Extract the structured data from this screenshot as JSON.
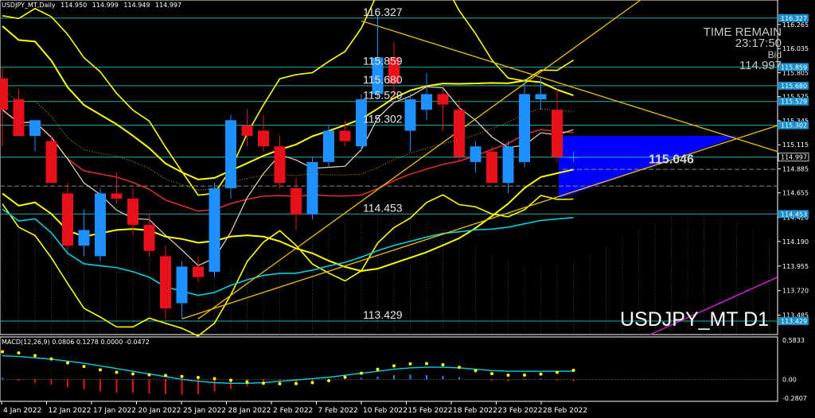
{
  "header": {
    "symbol_tf": "USDJPY_MT,Daily",
    "open": "114.950",
    "high": "114.999",
    "low": "114.949",
    "close": "114.997"
  },
  "time_panel": {
    "time_remain_label": "TIME REMAIN",
    "time_remain_value": "23:17:50",
    "bid_label": "Bid",
    "bid_value": "114.997"
  },
  "symbol_label": "USDJPY_MT D1",
  "macd_label": "MACD(12,26,9) 0.0806 0.1278 0.0000 -0.0472",
  "forecast_label": "115.046",
  "colors": {
    "bull": "#1e90ff",
    "bear": "#e8101a",
    "yellow": "#ffff00",
    "cyan": "#00d0e0",
    "orange": "#f0c000",
    "blue_fill": "#0000ff",
    "level_line": "#20b0b0",
    "tag_bg": "#1a8fcf"
  },
  "chart_data": {
    "type": "candlestick",
    "price_range": [
      113.3,
      116.5
    ],
    "x_labels": [
      "4 Jan 2022",
      "12 Jan 2022",
      "17 Jan 2022",
      "20 Jan 2022",
      "25 Jan 2022",
      "28 Jan 2022",
      "2 Feb 2022",
      "7 Feb 2022",
      "10 Feb 2022",
      "15 Feb 2022",
      "18 Feb 2022",
      "23 Feb 2022",
      "28 Feb 2022"
    ],
    "y_ticks": [
      "116.265",
      "116.035",
      "115.805",
      "115.575",
      "115.345",
      "115.115",
      "114.885",
      "114.655",
      "114.420",
      "114.190",
      "113.955",
      "113.720",
      "113.485"
    ],
    "level_tags": [
      "116.327",
      "115.859",
      "115.680",
      "115.529",
      "115.302",
      "114.997",
      "114.453",
      "113.429"
    ],
    "level_labels": [
      "116.327",
      "115.859",
      "115.680",
      "115.529",
      "115.302",
      "114.453",
      "113.429"
    ],
    "candles": [
      {
        "o": 115.75,
        "h": 115.85,
        "l": 115.1,
        "c": 115.45
      },
      {
        "o": 115.55,
        "h": 115.65,
        "l": 115.2,
        "c": 115.2
      },
      {
        "o": 115.2,
        "h": 115.35,
        "l": 115.05,
        "c": 115.35
      },
      {
        "o": 115.15,
        "h": 115.2,
        "l": 114.75,
        "c": 114.75
      },
      {
        "o": 114.65,
        "h": 114.75,
        "l": 114.1,
        "c": 114.15
      },
      {
        "o": 114.15,
        "h": 114.5,
        "l": 114.05,
        "c": 114.3
      },
      {
        "o": 114.05,
        "h": 114.7,
        "l": 114.0,
        "c": 114.65
      },
      {
        "o": 114.65,
        "h": 114.85,
        "l": 114.55,
        "c": 114.6
      },
      {
        "o": 114.6,
        "h": 114.7,
        "l": 114.25,
        "c": 114.35
      },
      {
        "o": 114.35,
        "h": 114.45,
        "l": 114.05,
        "c": 114.1
      },
      {
        "o": 114.05,
        "h": 114.15,
        "l": 113.45,
        "c": 113.55
      },
      {
        "o": 113.6,
        "h": 114.0,
        "l": 113.45,
        "c": 113.95
      },
      {
        "o": 113.95,
        "h": 114.05,
        "l": 113.8,
        "c": 113.85
      },
      {
        "o": 113.9,
        "h": 114.75,
        "l": 113.85,
        "c": 114.7
      },
      {
        "o": 114.7,
        "h": 115.4,
        "l": 114.6,
        "c": 115.35
      },
      {
        "o": 115.3,
        "h": 115.45,
        "l": 115.1,
        "c": 115.2
      },
      {
        "o": 115.25,
        "h": 115.4,
        "l": 115.05,
        "c": 115.1
      },
      {
        "o": 115.1,
        "h": 115.2,
        "l": 114.7,
        "c": 114.75
      },
      {
        "o": 114.7,
        "h": 114.8,
        "l": 114.3,
        "c": 114.45
      },
      {
        "o": 114.45,
        "h": 115.0,
        "l": 114.4,
        "c": 114.95
      },
      {
        "o": 114.95,
        "h": 115.3,
        "l": 114.9,
        "c": 115.25
      },
      {
        "o": 115.25,
        "h": 115.35,
        "l": 115.1,
        "c": 115.15
      },
      {
        "o": 115.1,
        "h": 115.6,
        "l": 115.05,
        "c": 115.55
      },
      {
        "o": 115.6,
        "h": 116.35,
        "l": 115.55,
        "c": 115.95
      },
      {
        "o": 115.95,
        "h": 116.1,
        "l": 115.55,
        "c": 115.7
      },
      {
        "o": 115.25,
        "h": 115.6,
        "l": 115.05,
        "c": 115.55
      },
      {
        "o": 115.45,
        "h": 115.8,
        "l": 115.35,
        "c": 115.6
      },
      {
        "o": 115.6,
        "h": 115.65,
        "l": 115.25,
        "c": 115.5
      },
      {
        "o": 115.45,
        "h": 115.55,
        "l": 114.95,
        "c": 115.0
      },
      {
        "o": 114.95,
        "h": 115.15,
        "l": 114.85,
        "c": 115.1
      },
      {
        "o": 115.05,
        "h": 115.1,
        "l": 114.75,
        "c": 114.75
      },
      {
        "o": 114.75,
        "h": 115.15,
        "l": 114.65,
        "c": 115.1
      },
      {
        "o": 114.95,
        "h": 115.75,
        "l": 114.9,
        "c": 115.6
      },
      {
        "o": 115.55,
        "h": 115.75,
        "l": 115.45,
        "c": 115.6
      },
      {
        "o": 115.45,
        "h": 115.65,
        "l": 114.95,
        "c": 115.0
      },
      {
        "o": 115.0,
        "h": 115.05,
        "l": 114.95,
        "c": 115.0
      }
    ],
    "macd": {
      "range": [
        -0.2807,
        0.5833
      ],
      "y_ticks": [
        "0.5833",
        "0.00",
        "-0.2807"
      ],
      "histogram": [
        0.02,
        -0.02,
        -0.05,
        -0.08,
        -0.12,
        -0.15,
        -0.18,
        -0.2,
        -0.2,
        -0.21,
        -0.22,
        -0.23,
        -0.22,
        -0.18,
        -0.14,
        -0.1,
        -0.08,
        -0.06,
        -0.05,
        -0.03,
        -0.01,
        0.01,
        0.02,
        0.04,
        0.06,
        0.07,
        0.06,
        0.05,
        0.03,
        0.0,
        -0.02,
        -0.03,
        -0.01,
        0.01,
        -0.02,
        -0.03
      ],
      "signal": [
        0.35,
        0.34,
        0.32,
        0.3,
        0.27,
        0.24,
        0.2,
        0.16,
        0.12,
        0.08,
        0.04,
        0.0,
        -0.03,
        -0.05,
        -0.06,
        -0.06,
        -0.05,
        -0.03,
        -0.01,
        0.01,
        0.03,
        0.06,
        0.09,
        0.12,
        0.15,
        0.17,
        0.18,
        0.18,
        0.17,
        0.15,
        0.13,
        0.12,
        0.12,
        0.12,
        0.12,
        0.12
      ]
    }
  }
}
